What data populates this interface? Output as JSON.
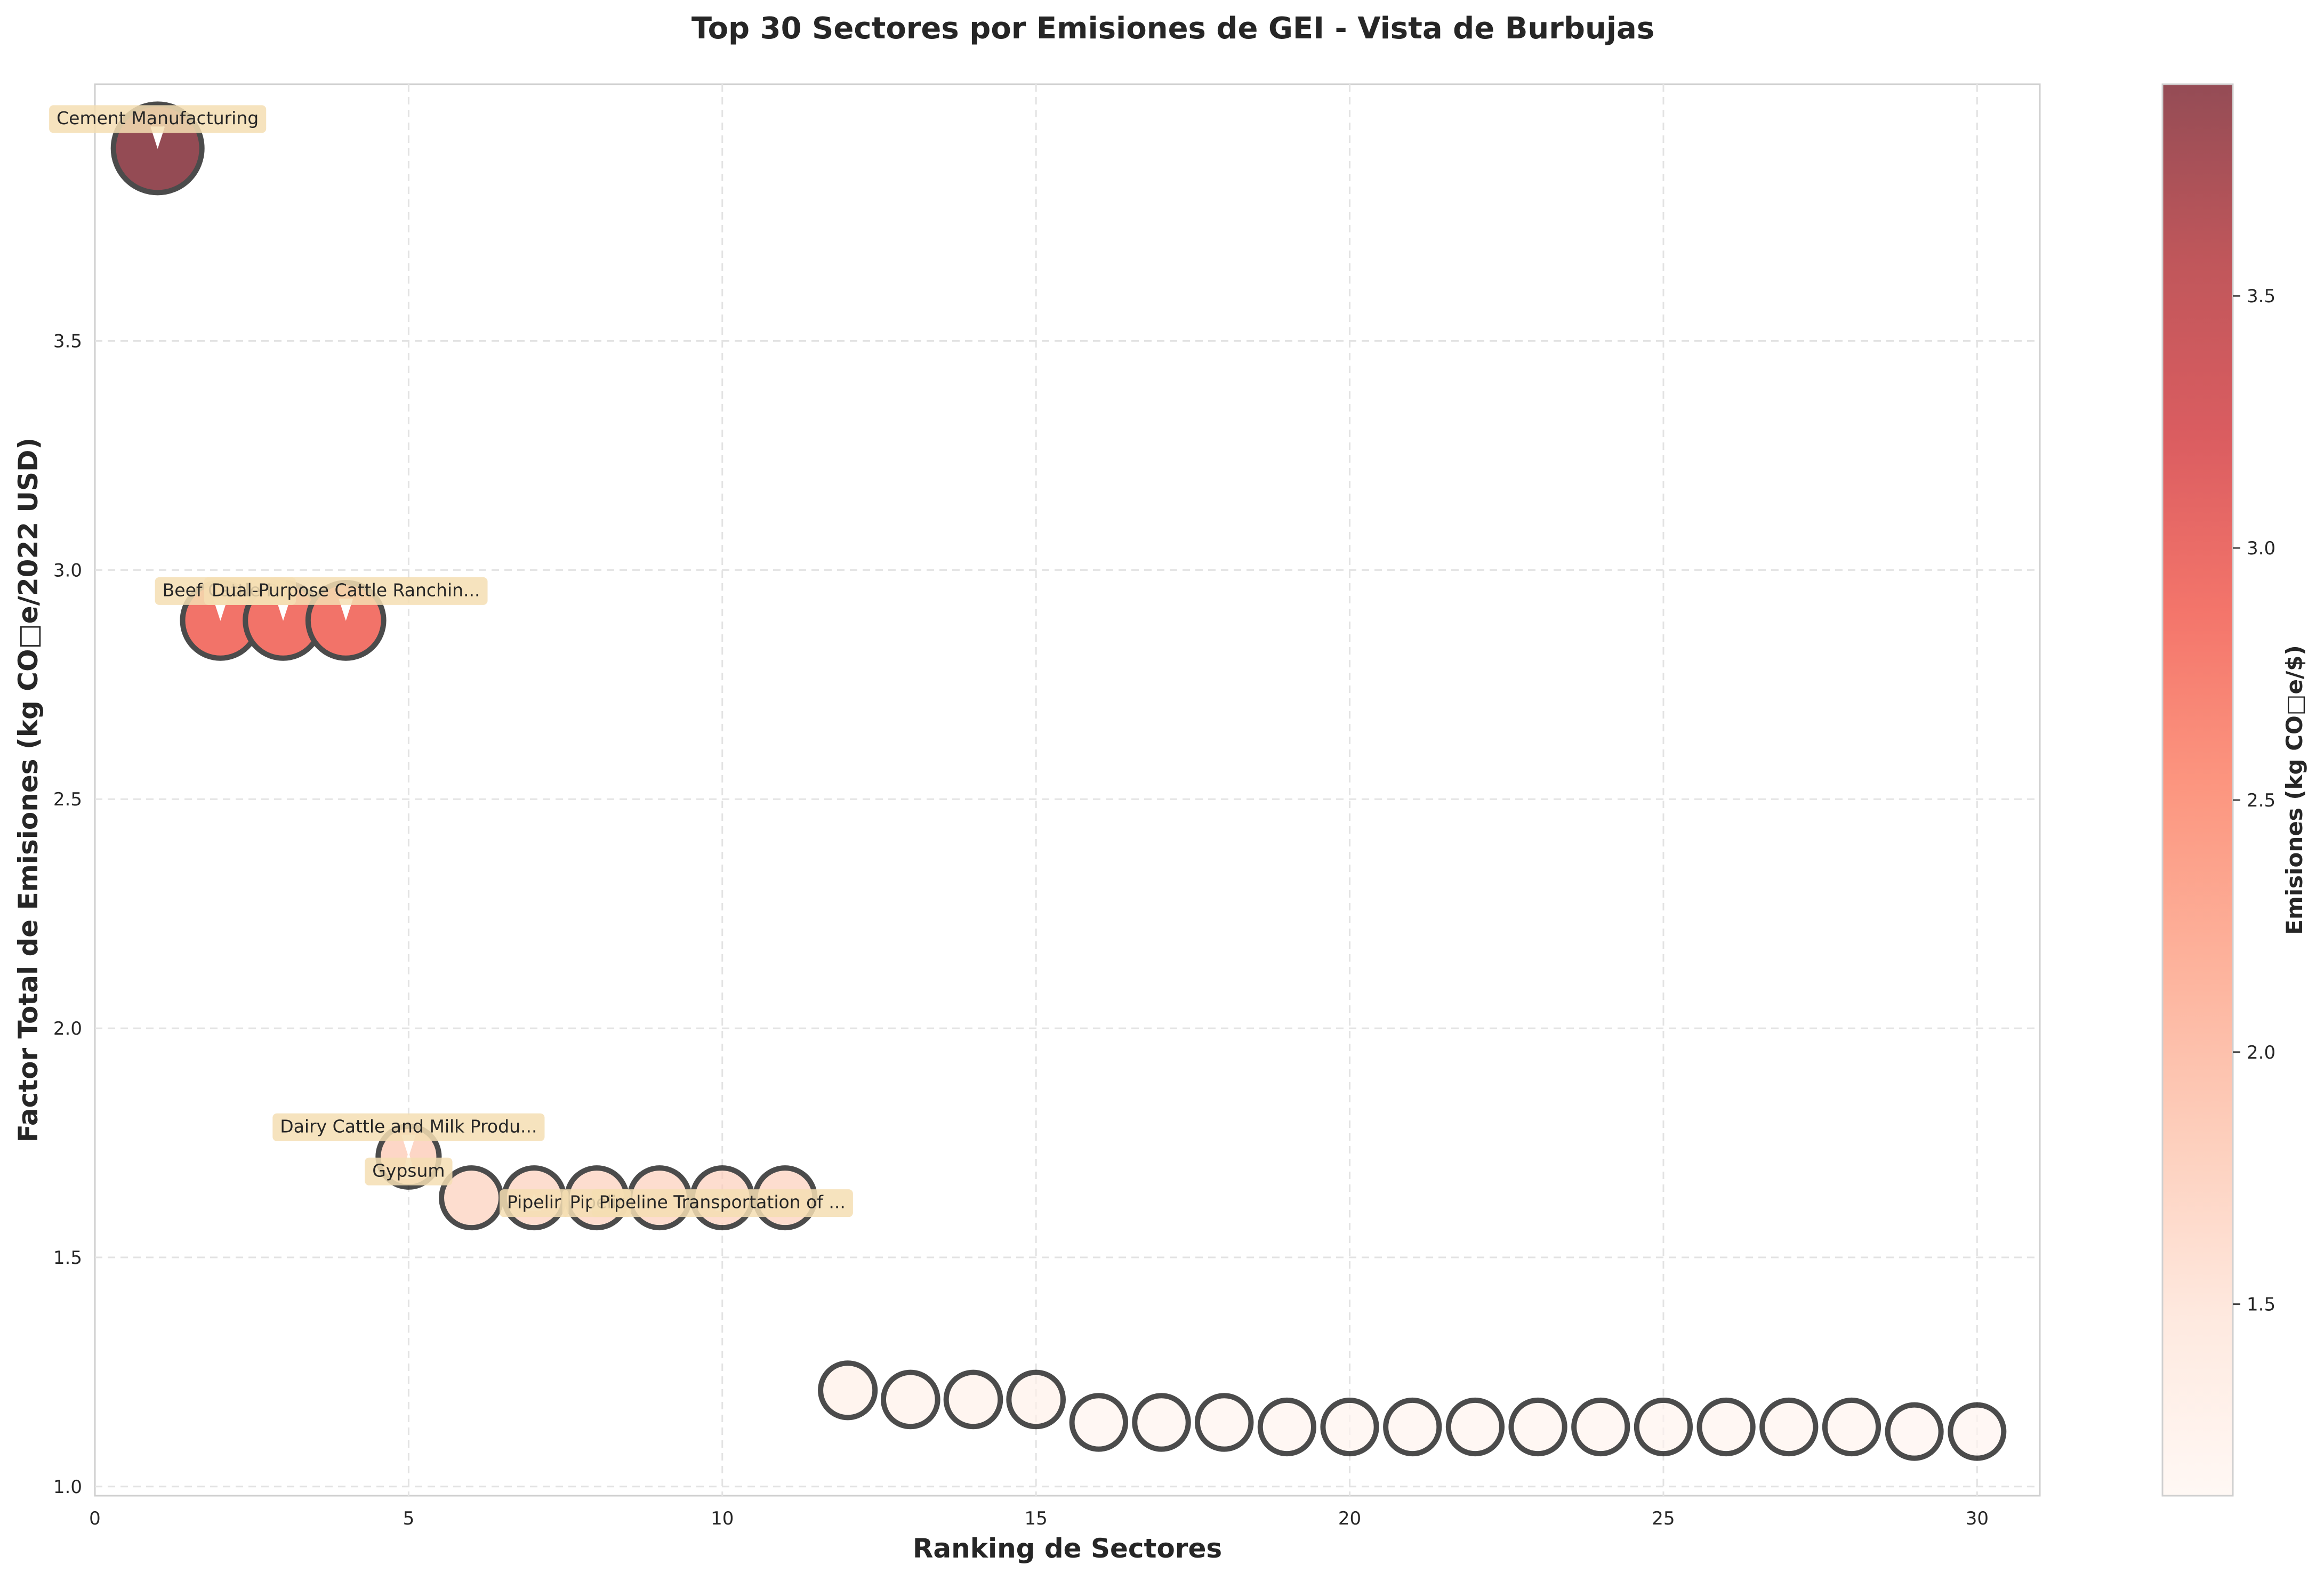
{
  "chart_data": {
    "type": "scatter",
    "title": "Top 30 Sectores por Emisiones de GEI - Vista de Burbujas",
    "xlabel": "Ranking de Sectores",
    "ylabel": "Factor Total de Emisiones (kg CO□e/2022 USD)",
    "xlim": [
      0,
      31
    ],
    "ylim": [
      0.98,
      4.06
    ],
    "xticks": [
      0,
      5,
      10,
      15,
      20,
      25,
      30
    ],
    "yticks": [
      1.0,
      1.5,
      2.0,
      2.5,
      3.0,
      3.5
    ],
    "grid": true,
    "points": [
      {
        "x": 1,
        "y": 3.92
      },
      {
        "x": 2,
        "y": 2.89
      },
      {
        "x": 3,
        "y": 2.89
      },
      {
        "x": 4,
        "y": 2.89
      },
      {
        "x": 5,
        "y": 1.72
      },
      {
        "x": 6,
        "y": 1.63
      },
      {
        "x": 7,
        "y": 1.63
      },
      {
        "x": 8,
        "y": 1.63
      },
      {
        "x": 9,
        "y": 1.63
      },
      {
        "x": 10,
        "y": 1.63
      },
      {
        "x": 11,
        "y": 1.63
      },
      {
        "x": 12,
        "y": 1.21
      },
      {
        "x": 13,
        "y": 1.19
      },
      {
        "x": 14,
        "y": 1.19
      },
      {
        "x": 15,
        "y": 1.19
      },
      {
        "x": 16,
        "y": 1.14
      },
      {
        "x": 17,
        "y": 1.14
      },
      {
        "x": 18,
        "y": 1.14
      },
      {
        "x": 19,
        "y": 1.13
      },
      {
        "x": 20,
        "y": 1.13
      },
      {
        "x": 21,
        "y": 1.13
      },
      {
        "x": 22,
        "y": 1.13
      },
      {
        "x": 23,
        "y": 1.13
      },
      {
        "x": 24,
        "y": 1.13
      },
      {
        "x": 25,
        "y": 1.13
      },
      {
        "x": 26,
        "y": 1.13
      },
      {
        "x": 27,
        "y": 1.13
      },
      {
        "x": 28,
        "y": 1.13
      },
      {
        "x": 29,
        "y": 1.12
      },
      {
        "x": 30,
        "y": 1.12
      }
    ],
    "annotations": [
      {
        "x": 1,
        "y": 3.92,
        "text": "Cement Manufacturing"
      },
      {
        "x": 2,
        "y": 2.89,
        "text": "Beef Cattle R"
      },
      {
        "x": 3,
        "y": 2.89,
        "text": ""
      },
      {
        "x": 4,
        "y": 2.89,
        "text": "Dual-Purpose Cattle Ranchin..."
      },
      {
        "x": 5,
        "y": 1.72,
        "text": "Dairy Cattle and Milk Produ..."
      },
      {
        "x": 5,
        "y": 1.72,
        "text": "Gypsum"
      },
      {
        "x": 7,
        "y": 1.63,
        "text": "Pipelir"
      },
      {
        "x": 8,
        "y": 1.63,
        "text": "Pipelir"
      },
      {
        "x": 10,
        "y": 1.63,
        "text": "Pipeline Transportation of ..."
      }
    ],
    "colorbar": {
      "label": "Emisiones (kg CO□e/$)",
      "range": [
        1.12,
        3.92
      ],
      "ticks": [
        1.5,
        2.0,
        2.5,
        3.0,
        3.5
      ],
      "colormap": "Reds",
      "alpha": 0.7
    }
  }
}
